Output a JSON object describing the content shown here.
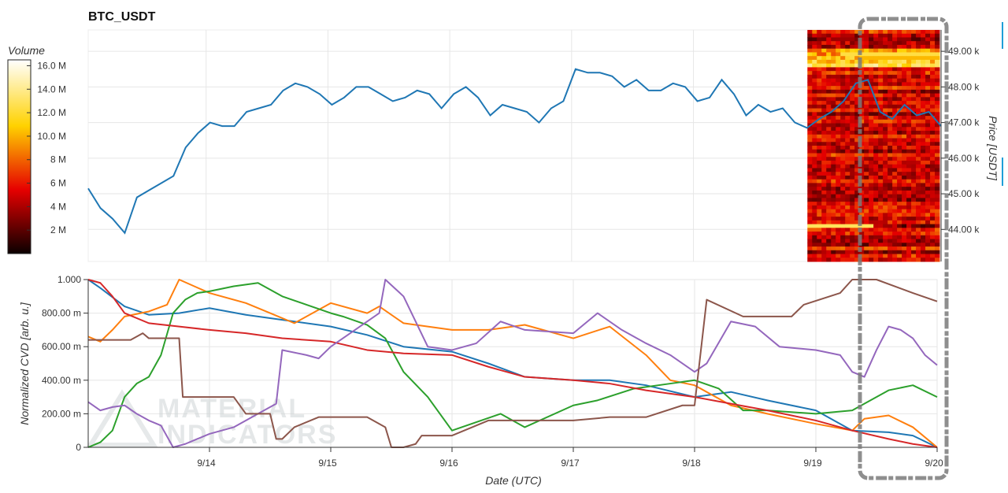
{
  "chart_data": [
    {
      "type": "line",
      "title": "BTC_USDT",
      "ylabel": "Price [USDT]",
      "ylim": [
        43100,
        49600
      ],
      "yticks": [
        "44.00 k",
        "45.00 k",
        "46.00 k",
        "47.00 k",
        "48.00 k",
        "49.00 k"
      ],
      "ytick_values": [
        44000,
        45000,
        46000,
        47000,
        48000,
        49000
      ],
      "xlim": [
        0,
        7
      ],
      "grid": true,
      "series": [
        {
          "color": "#1f77b4",
          "x": [
            0.0,
            0.1,
            0.2,
            0.3,
            0.4,
            0.5,
            0.6,
            0.7,
            0.8,
            0.9,
            1.0,
            1.1,
            1.2,
            1.3,
            1.4,
            1.5,
            1.6,
            1.7,
            1.8,
            1.9,
            2.0,
            2.1,
            2.2,
            2.3,
            2.4,
            2.5,
            2.6,
            2.7,
            2.8,
            2.9,
            3.0,
            3.1,
            3.2,
            3.3,
            3.4,
            3.5,
            3.6,
            3.7,
            3.8,
            3.9,
            4.0,
            4.1,
            4.2,
            4.3,
            4.4,
            4.5,
            4.6,
            4.7,
            4.8,
            4.9,
            5.0,
            5.1,
            5.2,
            5.3,
            5.4,
            5.5,
            5.6,
            5.7,
            5.8,
            5.9,
            6.0,
            6.1,
            6.2,
            6.3,
            6.4,
            6.5,
            6.6,
            6.7,
            6.8,
            6.9,
            7.0
          ],
          "values": [
            45150,
            44600,
            44300,
            43900,
            44900,
            45100,
            45300,
            45500,
            46300,
            46700,
            47000,
            46900,
            46900,
            47300,
            47400,
            47500,
            47900,
            48100,
            48000,
            47800,
            47500,
            47700,
            48000,
            48000,
            47800,
            47600,
            47700,
            47900,
            47800,
            47400,
            47800,
            48000,
            47700,
            47200,
            47500,
            47400,
            47300,
            47000,
            47400,
            47600,
            48500,
            48400,
            48400,
            48300,
            48000,
            48200,
            47900,
            47900,
            48100,
            48000,
            47600,
            47700,
            48200,
            47800,
            47200,
            47500,
            47300,
            47400,
            47000,
            46850,
            47100,
            47300,
            47600,
            48100,
            48200,
            47300,
            47100,
            47500,
            47200,
            47300,
            46900
          ]
        }
      ]
    },
    {
      "type": "heatmap",
      "colorbar_label": "Volume",
      "colorbar_ticks": [
        "2 M",
        "4 M",
        "6 M",
        "8 M",
        "10.0 M",
        "12.0 M",
        "14.0 M",
        "16.0 M"
      ],
      "colorbar_values": [
        2,
        4,
        6,
        8,
        10,
        12,
        14,
        16
      ],
      "crange": [
        0,
        16.5
      ],
      "x_range": [
        6.0,
        7.0
      ],
      "price_range": [
        43100,
        49600
      ]
    },
    {
      "type": "line",
      "xlabel": "Date (UTC)",
      "ylabel": "Normalized CVD [arb. u.]",
      "ylim": [
        0,
        1
      ],
      "yticks": [
        "0",
        "200.00 m",
        "400.00 m",
        "600.00 m",
        "800.00 m",
        "1.000"
      ],
      "ytick_values": [
        0,
        0.2,
        0.4,
        0.6,
        0.8,
        1.0
      ],
      "xlim": [
        0,
        7
      ],
      "xticks": [
        "9/14",
        "9/15",
        "9/16",
        "9/17",
        "9/18",
        "9/19",
        "9/20"
      ],
      "xtick_values": [
        1,
        2,
        3,
        4,
        5,
        6,
        7
      ],
      "grid": true,
      "series": [
        {
          "color": "#1f77b4",
          "x": [
            0,
            0.1,
            0.3,
            0.5,
            0.75,
            1,
            1.3,
            1.6,
            2,
            2.3,
            2.6,
            3,
            3.3,
            3.6,
            4,
            4.3,
            4.6,
            5,
            5.3,
            5.6,
            6,
            6.3,
            6.6,
            6.8,
            7
          ],
          "values": [
            1.0,
            0.95,
            0.84,
            0.79,
            0.8,
            0.83,
            0.79,
            0.76,
            0.72,
            0.67,
            0.6,
            0.57,
            0.5,
            0.42,
            0.4,
            0.4,
            0.37,
            0.3,
            0.33,
            0.28,
            0.22,
            0.1,
            0.09,
            0.07,
            0.0
          ]
        },
        {
          "color": "#ff7f0e",
          "x": [
            0,
            0.1,
            0.2,
            0.3,
            0.5,
            0.65,
            0.75,
            1,
            1.3,
            1.5,
            1.7,
            2,
            2.3,
            2.4,
            2.6,
            3,
            3.3,
            3.6,
            4,
            4.3,
            4.6,
            4.8,
            5,
            5.3,
            5.6,
            6,
            6.3,
            6.4,
            6.6,
            6.8,
            7
          ],
          "values": [
            0.66,
            0.63,
            0.7,
            0.78,
            0.81,
            0.85,
            1.0,
            0.92,
            0.86,
            0.8,
            0.74,
            0.86,
            0.8,
            0.84,
            0.74,
            0.7,
            0.7,
            0.73,
            0.65,
            0.72,
            0.55,
            0.4,
            0.37,
            0.25,
            0.2,
            0.14,
            0.1,
            0.17,
            0.19,
            0.12,
            0.0
          ]
        },
        {
          "color": "#2ca02c",
          "x": [
            0,
            0.1,
            0.2,
            0.3,
            0.4,
            0.5,
            0.6,
            0.7,
            0.8,
            0.9,
            1,
            1.2,
            1.4,
            1.6,
            1.8,
            2,
            2.1,
            2.3,
            2.45,
            2.6,
            2.8,
            3,
            3.2,
            3.4,
            3.6,
            4,
            4.2,
            4.5,
            4.8,
            5,
            5.2,
            5.4,
            5.6,
            6,
            6.3,
            6.6,
            6.8,
            7
          ],
          "values": [
            0.0,
            0.03,
            0.1,
            0.3,
            0.38,
            0.42,
            0.55,
            0.8,
            0.88,
            0.92,
            0.93,
            0.96,
            0.98,
            0.9,
            0.85,
            0.8,
            0.78,
            0.73,
            0.65,
            0.45,
            0.3,
            0.1,
            0.15,
            0.2,
            0.12,
            0.25,
            0.28,
            0.35,
            0.38,
            0.4,
            0.35,
            0.22,
            0.22,
            0.2,
            0.22,
            0.34,
            0.37,
            0.3
          ]
        },
        {
          "color": "#d62728",
          "x": [
            0,
            0.1,
            0.2,
            0.3,
            0.5,
            0.75,
            1,
            1.3,
            1.6,
            2,
            2.3,
            2.6,
            3,
            3.3,
            3.6,
            4,
            4.3,
            4.6,
            5,
            5.3,
            5.6,
            6,
            6.3,
            6.6,
            6.8,
            7
          ],
          "values": [
            1.0,
            0.98,
            0.9,
            0.8,
            0.74,
            0.72,
            0.7,
            0.68,
            0.65,
            0.63,
            0.58,
            0.56,
            0.55,
            0.48,
            0.42,
            0.4,
            0.38,
            0.34,
            0.3,
            0.26,
            0.22,
            0.16,
            0.1,
            0.05,
            0.02,
            0.0
          ]
        },
        {
          "color": "#9467bd",
          "x": [
            0,
            0.1,
            0.2,
            0.3,
            0.4,
            0.5,
            0.6,
            0.7,
            0.8,
            0.9,
            1,
            1.2,
            1.4,
            1.55,
            1.6,
            1.8,
            1.9,
            2,
            2.2,
            2.4,
            2.45,
            2.6,
            2.8,
            3,
            3.2,
            3.4,
            3.6,
            4,
            4.2,
            4.4,
            4.6,
            4.8,
            5,
            5.1,
            5.3,
            5.5,
            5.7,
            6,
            6.2,
            6.3,
            6.4,
            6.5,
            6.6,
            6.7,
            6.8,
            6.9,
            7
          ],
          "values": [
            0.27,
            0.22,
            0.24,
            0.25,
            0.2,
            0.16,
            0.13,
            0.0,
            0.02,
            0.05,
            0.08,
            0.12,
            0.2,
            0.26,
            0.58,
            0.55,
            0.53,
            0.6,
            0.7,
            0.8,
            1.0,
            0.9,
            0.6,
            0.58,
            0.62,
            0.75,
            0.7,
            0.68,
            0.8,
            0.7,
            0.62,
            0.55,
            0.45,
            0.5,
            0.75,
            0.72,
            0.6,
            0.58,
            0.55,
            0.45,
            0.42,
            0.58,
            0.72,
            0.7,
            0.65,
            0.55,
            0.49
          ]
        },
        {
          "color": "#8c564b",
          "x": [
            0,
            0.35,
            0.45,
            0.5,
            0.6,
            0.75,
            0.78,
            0.95,
            1.2,
            1.3,
            1.5,
            1.55,
            1.6,
            1.7,
            1.9,
            2.0,
            2.3,
            2.45,
            2.5,
            2.6,
            2.7,
            2.75,
            3,
            3.3,
            3.6,
            4,
            4.3,
            4.6,
            4.9,
            5.0,
            5.1,
            5.4,
            5.8,
            5.9,
            6.2,
            6.3,
            6.5,
            6.8,
            7
          ],
          "values": [
            0.64,
            0.64,
            0.68,
            0.65,
            0.65,
            0.65,
            0.3,
            0.3,
            0.3,
            0.2,
            0.2,
            0.05,
            0.05,
            0.12,
            0.18,
            0.18,
            0.18,
            0.12,
            0.0,
            0.0,
            0.02,
            0.07,
            0.07,
            0.16,
            0.16,
            0.16,
            0.18,
            0.18,
            0.25,
            0.25,
            0.88,
            0.78,
            0.78,
            0.85,
            0.92,
            1.0,
            1.0,
            0.92,
            0.87
          ]
        }
      ]
    }
  ],
  "watermark": {
    "line1": "MATERIAL",
    "line2": "INDICATORS"
  }
}
